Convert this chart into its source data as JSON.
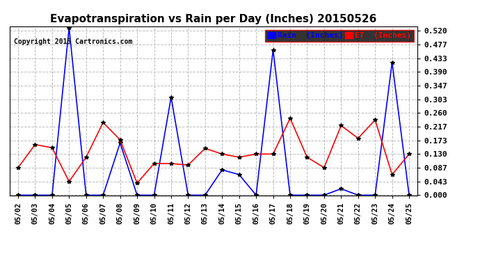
{
  "title": "Evapotranspiration vs Rain per Day (Inches) 20150526",
  "copyright": "Copyright 2015 Cartronics.com",
  "legend_rain": "Rain  (Inches)",
  "legend_et": "ET  (Inches)",
  "dates": [
    "05/02",
    "05/03",
    "05/04",
    "05/05",
    "05/06",
    "05/07",
    "05/08",
    "05/09",
    "05/10",
    "05/11",
    "05/12",
    "05/13",
    "05/14",
    "05/15",
    "05/16",
    "05/17",
    "05/18",
    "05/19",
    "05/20",
    "05/21",
    "05/22",
    "05/23",
    "05/24",
    "05/25"
  ],
  "rain": [
    0.0,
    0.0,
    0.0,
    0.53,
    0.0,
    0.0,
    0.165,
    0.0,
    0.0,
    0.31,
    0.0,
    0.0,
    0.08,
    0.065,
    0.0,
    0.46,
    0.0,
    0.0,
    0.0,
    0.02,
    0.0,
    0.0,
    0.42,
    0.0
  ],
  "et": [
    0.087,
    0.16,
    0.15,
    0.043,
    0.12,
    0.23,
    0.175,
    0.038,
    0.1,
    0.1,
    0.095,
    0.148,
    0.13,
    0.12,
    0.13,
    0.13,
    0.243,
    0.12,
    0.087,
    0.22,
    0.18,
    0.238,
    0.065,
    0.13
  ],
  "rain_color": "#0000ff",
  "et_color": "#ff0000",
  "bg_color": "#ffffff",
  "grid_color": "#bbbbbb",
  "yticks": [
    0.0,
    0.043,
    0.087,
    0.13,
    0.173,
    0.217,
    0.26,
    0.303,
    0.347,
    0.39,
    0.433,
    0.477,
    0.52
  ],
  "ylim": [
    -0.002,
    0.535
  ],
  "marker": "*",
  "marker_color": "#000000",
  "marker_size": 4,
  "line_width": 1.2,
  "title_fontsize": 11,
  "tick_fontsize": 7.5,
  "legend_fontsize": 8,
  "copyright_fontsize": 7,
  "yticklabel_fontsize": 8
}
